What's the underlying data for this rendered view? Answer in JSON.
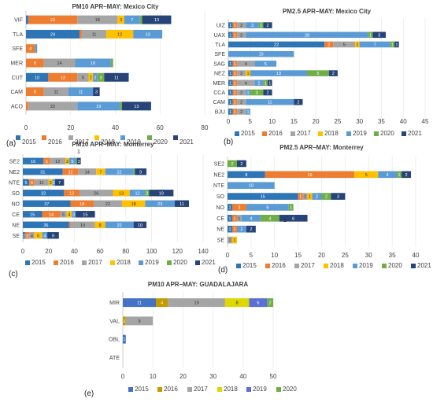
{
  "chart_data": [
    {
      "type": "bar",
      "stacked": true,
      "orientation": "horizontal",
      "panel_label": "(a)",
      "title": "PM10 APR–MAY: Mexico City",
      "categories": [
        "VIF",
        "TLA",
        "SFE",
        "MER",
        "CUT",
        "CAM",
        "ACO"
      ],
      "xlim": [
        0,
        80
      ],
      "xticks": [
        0,
        20,
        40,
        60,
        80
      ],
      "legend_position": "bottom",
      "series": [
        {
          "name": "2015",
          "color": "#2e75b6",
          "values": [
            1,
            24,
            0,
            0,
            10,
            0,
            0
          ]
        },
        {
          "name": "2016",
          "color": "#ed7d31",
          "values": [
            22,
            1,
            4,
            8,
            13,
            8,
            1
          ]
        },
        {
          "name": "2017",
          "color": "#a5a5a5",
          "values": [
            18,
            11,
            0,
            14,
            5,
            11,
            22
          ]
        },
        {
          "name": "2018",
          "color": "#ffc000",
          "values": [
            3,
            12,
            0,
            0,
            2,
            0,
            0
          ]
        },
        {
          "name": "2019",
          "color": "#5b9bd5",
          "values": [
            7,
            13,
            1,
            16,
            2,
            11,
            19
          ]
        },
        {
          "name": "2020",
          "color": "#70ad47",
          "values": [
            1,
            0,
            0,
            1,
            3,
            0,
            1
          ]
        },
        {
          "name": "2021",
          "color": "#264478",
          "values": [
            13,
            0,
            0,
            0,
            11,
            3,
            13
          ]
        }
      ]
    },
    {
      "type": "bar",
      "stacked": true,
      "orientation": "horizontal",
      "panel_label": "(b)",
      "title": "PM2.5 APR–MAY: Mexico City",
      "categories": [
        "UIZ",
        "UAX",
        "TLA",
        "SFE",
        "SAG",
        "NEZ",
        "MER",
        "CCA",
        "CAM",
        "BJU"
      ],
      "xlim": [
        0,
        45
      ],
      "xticks": [
        0,
        5,
        10,
        15,
        20,
        25,
        30,
        35,
        40,
        45
      ],
      "legend_position": "bottom",
      "series": [
        {
          "name": "2015",
          "color": "#2e75b6",
          "values": [
            1,
            1,
            22,
            0,
            1,
            1,
            1,
            1,
            1,
            1
          ]
        },
        {
          "name": "2016",
          "color": "#ed7d31",
          "values": [
            1,
            1,
            2,
            0,
            1,
            1,
            1,
            1,
            1,
            1
          ]
        },
        {
          "name": "2017",
          "color": "#a5a5a5",
          "values": [
            2,
            2,
            5,
            0,
            4,
            2,
            4,
            2,
            2,
            2
          ]
        },
        {
          "name": "2018",
          "color": "#ffc000",
          "values": [
            0,
            0,
            1,
            0,
            0,
            1,
            0,
            0,
            0,
            0
          ]
        },
        {
          "name": "2019",
          "color": "#5b9bd5",
          "values": [
            3,
            28,
            7,
            15,
            5,
            13,
            2,
            1,
            11,
            1
          ]
        },
        {
          "name": "2020",
          "color": "#70ad47",
          "values": [
            1,
            1,
            1,
            0,
            0,
            5,
            1,
            3,
            0,
            0
          ]
        },
        {
          "name": "2021",
          "color": "#264478",
          "values": [
            2,
            3,
            1,
            0,
            0,
            2,
            1,
            2,
            2,
            0
          ]
        }
      ]
    },
    {
      "type": "bar",
      "stacked": true,
      "orientation": "horizontal",
      "panel_label": "(c)",
      "title": "PM10 APR–MAY: Monterrey",
      "categories": [
        "SE2",
        "NE2",
        "NTE",
        "SO",
        "NO",
        "CE",
        "NE",
        "SE"
      ],
      "xlim": [
        0,
        140
      ],
      "xticks": [
        0,
        20,
        40,
        60,
        80,
        100,
        120,
        140
      ],
      "legend_position": "bottom",
      "annotations": [
        "1"
      ],
      "series": [
        {
          "name": "2015",
          "color": "#2e75b6",
          "values": [
            16,
            31,
            5,
            32,
            37,
            15,
            36,
            2
          ]
        },
        {
          "name": "2016",
          "color": "#ed7d31",
          "values": [
            5,
            12,
            4,
            12,
            18,
            14,
            1,
            3
          ]
        },
        {
          "name": "2017",
          "color": "#a5a5a5",
          "values": [
            12,
            14,
            11,
            26,
            22,
            5,
            19,
            4
          ]
        },
        {
          "name": "2018",
          "color": "#ffc000",
          "values": [
            3,
            7,
            3,
            13,
            18,
            4,
            8,
            6
          ]
        },
        {
          "name": "2019",
          "color": "#5b9bd5",
          "values": [
            5,
            22,
            2,
            12,
            23,
            3,
            22,
            4
          ]
        },
        {
          "name": "2020",
          "color": "#70ad47",
          "values": [
            1,
            1,
            0,
            3,
            0,
            0,
            0,
            0
          ]
        },
        {
          "name": "2021",
          "color": "#264478",
          "values": [
            3,
            9,
            7,
            19,
            11,
            15,
            10,
            9
          ]
        }
      ]
    },
    {
      "type": "bar",
      "stacked": true,
      "orientation": "horizontal",
      "panel_label": "(d)",
      "title": "PM2.5 APR–MAY: Monterrey",
      "categories": [
        "SE2",
        "NE2",
        "NTE",
        "SO",
        "NO",
        "CE",
        "NE",
        "SE"
      ],
      "xlim": [
        0,
        40
      ],
      "xticks": [
        0,
        5,
        10,
        15,
        20,
        25,
        30,
        35,
        40
      ],
      "legend_position": "bottom",
      "annotations": [
        "1"
      ],
      "series": [
        {
          "name": "2015",
          "color": "#2e75b6",
          "values": [
            0,
            8,
            0,
            15,
            1,
            1,
            1,
            0
          ]
        },
        {
          "name": "2016",
          "color": "#ed7d31",
          "values": [
            0,
            19,
            0,
            1,
            3,
            1,
            1,
            0
          ]
        },
        {
          "name": "2017",
          "color": "#a5a5a5",
          "values": [
            0,
            0,
            0,
            1,
            0,
            1,
            0,
            1
          ]
        },
        {
          "name": "2018",
          "color": "#ffc000",
          "values": [
            0,
            5,
            0,
            1,
            0,
            0,
            0,
            1
          ]
        },
        {
          "name": "2019",
          "color": "#5b9bd5",
          "values": [
            0,
            4,
            10,
            2,
            9,
            4,
            2,
            0
          ]
        },
        {
          "name": "2020",
          "color": "#70ad47",
          "values": [
            2,
            1,
            0,
            2,
            1,
            4,
            0,
            0
          ]
        },
        {
          "name": "2021",
          "color": "#264478",
          "values": [
            2,
            2,
            0,
            3,
            0,
            6,
            2,
            0
          ]
        }
      ]
    },
    {
      "type": "bar",
      "stacked": true,
      "orientation": "horizontal",
      "panel_label": "(e)",
      "title": "PM10 APR–MAY: GUADALAJARA",
      "categories": [
        "MIR",
        "VAL",
        "OBL",
        "ATE"
      ],
      "xlim": [
        0,
        50
      ],
      "xticks": [
        0,
        10,
        20,
        30,
        40,
        50
      ],
      "legend_position": "bottom",
      "series": [
        {
          "name": "2015",
          "color": "#4472c4",
          "values": [
            11,
            0,
            1,
            0
          ]
        },
        {
          "name": "2016",
          "color": "#c49a00",
          "values": [
            4,
            1,
            0,
            0
          ]
        },
        {
          "name": "2017",
          "color": "#a5a5a5",
          "values": [
            19,
            9,
            0,
            0
          ]
        },
        {
          "name": "2018",
          "color": "#dcd800",
          "values": [
            8,
            0,
            0,
            0
          ]
        },
        {
          "name": "2019",
          "color": "#5b6fd6",
          "values": [
            6,
            0,
            0,
            0
          ]
        },
        {
          "name": "2020",
          "color": "#70ad47",
          "values": [
            2,
            0,
            0,
            0
          ]
        }
      ]
    }
  ]
}
